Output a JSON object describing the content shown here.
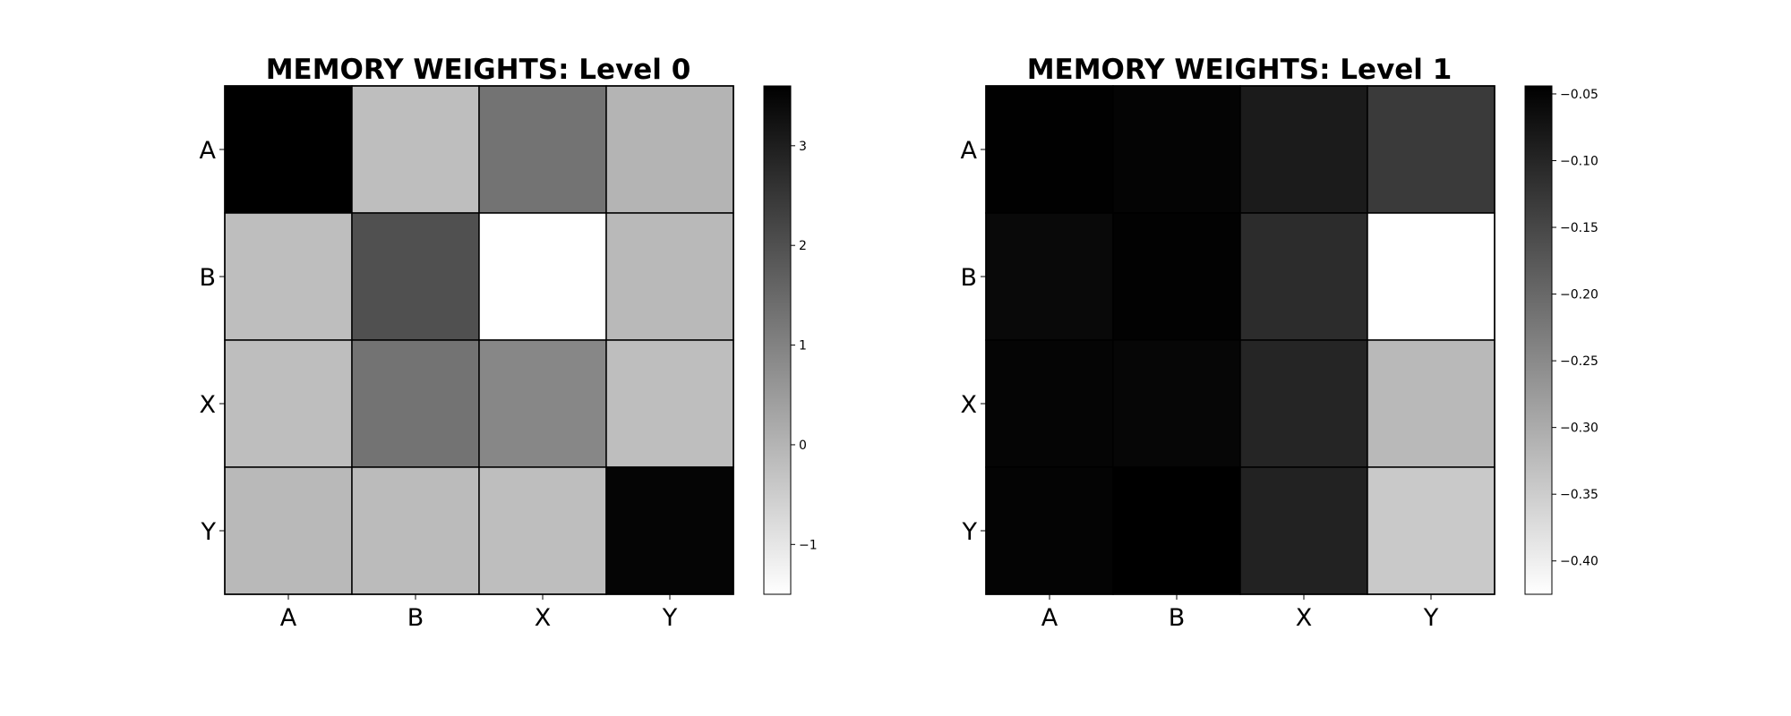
{
  "chart_data": [
    {
      "type": "heatmap",
      "title": "MEMORY WEIGHTS: Level 0",
      "rows": [
        "A",
        "B",
        "X",
        "Y"
      ],
      "columns": [
        "A",
        "B",
        "X",
        "Y"
      ],
      "values": [
        [
          3.6,
          -0.2,
          1.3,
          0.0
        ],
        [
          -0.2,
          2.0,
          -1.5,
          -0.1
        ],
        [
          -0.2,
          1.3,
          0.9,
          -0.2
        ],
        [
          -0.1,
          -0.15,
          -0.2,
          3.5
        ]
      ],
      "colormap": "gray_r",
      "color_range": [
        -1.5,
        3.6
      ],
      "colorbar_ticks": [
        "3",
        "2",
        "1",
        "0",
        "−1"
      ],
      "colorbar_tick_values": [
        3,
        2,
        1,
        0,
        -1
      ],
      "grid": true
    },
    {
      "type": "heatmap",
      "title": "MEMORY WEIGHTS: Level 1",
      "rows": [
        "A",
        "B",
        "X",
        "Y"
      ],
      "columns": [
        "A",
        "B",
        "X",
        "Y"
      ],
      "values": [
        [
          -0.045,
          -0.05,
          -0.085,
          -0.13
        ],
        [
          -0.057,
          -0.047,
          -0.11,
          -0.425
        ],
        [
          -0.052,
          -0.053,
          -0.1,
          -0.32
        ],
        [
          -0.05,
          -0.044,
          -0.095,
          -0.345
        ]
      ],
      "colormap": "gray_r",
      "color_range": [
        -0.425,
        -0.044
      ],
      "colorbar_ticks": [
        "−0.05",
        "−0.10",
        "−0.15",
        "−0.20",
        "−0.25",
        "−0.30",
        "−0.35",
        "−0.40"
      ],
      "colorbar_tick_values": [
        -0.05,
        -0.1,
        -0.15,
        -0.2,
        -0.25,
        -0.3,
        -0.35,
        -0.4
      ],
      "grid": true
    }
  ]
}
